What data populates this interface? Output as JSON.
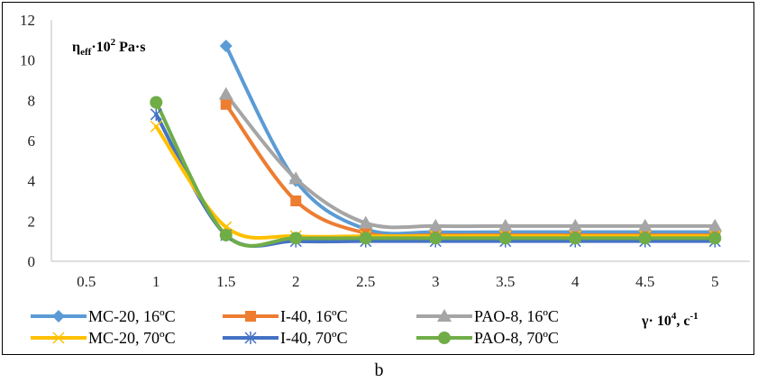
{
  "chart_data": {
    "type": "line",
    "x_ticks": [
      "0.5",
      "1",
      "1.5",
      "2",
      "2.5",
      "3",
      "3.5",
      "4",
      "4.5",
      "5"
    ],
    "y_ticks": [
      "0",
      "2",
      "4",
      "6",
      "8",
      "10",
      "12"
    ],
    "xlim": [
      0.25,
      5.25
    ],
    "ylim": [
      0,
      12
    ],
    "grid": false,
    "legend_position": "bottom",
    "ylabel": {
      "main": "η",
      "sub": "eff",
      "mid": "·10",
      "sup": "2",
      "unit": "Pa·s"
    },
    "xlabel": {
      "main": "γ· 10",
      "sup": "4",
      "unit": ",  c",
      "sup2": "-1"
    },
    "series": [
      {
        "name": "MC-20, 16ºC",
        "color": "#5b9bd5",
        "marker": "diamond",
        "points": [
          [
            1.5,
            10.7
          ],
          [
            2,
            4.0
          ],
          [
            2.5,
            1.6
          ],
          [
            3,
            1.45
          ],
          [
            3.5,
            1.45
          ],
          [
            4,
            1.45
          ],
          [
            4.5,
            1.45
          ],
          [
            5,
            1.45
          ]
        ]
      },
      {
        "name": "I-40, 16ºC",
        "color": "#ed7d31",
        "marker": "square",
        "points": [
          [
            1.5,
            7.8
          ],
          [
            2,
            3.0
          ],
          [
            2.5,
            1.4
          ],
          [
            3,
            1.3
          ],
          [
            3.5,
            1.3
          ],
          [
            4,
            1.3
          ],
          [
            4.5,
            1.3
          ],
          [
            5,
            1.3
          ]
        ]
      },
      {
        "name": "PAO-8, 16ºC",
        "color": "#a5a5a5",
        "marker": "triangle",
        "points": [
          [
            1.5,
            8.3
          ],
          [
            2,
            4.1
          ],
          [
            2.5,
            1.9
          ],
          [
            3,
            1.75
          ],
          [
            3.5,
            1.75
          ],
          [
            4,
            1.75
          ],
          [
            4.5,
            1.75
          ],
          [
            5,
            1.75
          ]
        ]
      },
      {
        "name": "MC-20, 70ºC",
        "color": "#ffc000",
        "marker": "x",
        "points": [
          [
            1,
            6.7
          ],
          [
            1.5,
            1.7
          ],
          [
            2,
            1.25
          ],
          [
            2.5,
            1.25
          ],
          [
            3,
            1.25
          ],
          [
            3.5,
            1.25
          ],
          [
            4,
            1.25
          ],
          [
            4.5,
            1.25
          ],
          [
            5,
            1.25
          ]
        ]
      },
      {
        "name": "I-40, 70ºC",
        "color": "#4472c4",
        "marker": "star",
        "points": [
          [
            1,
            7.3
          ],
          [
            1.5,
            1.3
          ],
          [
            2,
            1.0
          ],
          [
            2.5,
            1.0
          ],
          [
            3,
            1.0
          ],
          [
            3.5,
            1.0
          ],
          [
            4,
            1.0
          ],
          [
            4.5,
            1.0
          ],
          [
            5,
            1.0
          ]
        ]
      },
      {
        "name": "PAO-8, 70ºC",
        "color": "#70ad47",
        "marker": "circle",
        "points": [
          [
            1,
            7.9
          ],
          [
            1.5,
            1.3
          ],
          [
            2,
            1.15
          ],
          [
            2.5,
            1.15
          ],
          [
            3,
            1.15
          ],
          [
            3.5,
            1.15
          ],
          [
            4,
            1.15
          ],
          [
            4.5,
            1.15
          ],
          [
            5,
            1.15
          ]
        ]
      }
    ]
  },
  "caption": "b"
}
